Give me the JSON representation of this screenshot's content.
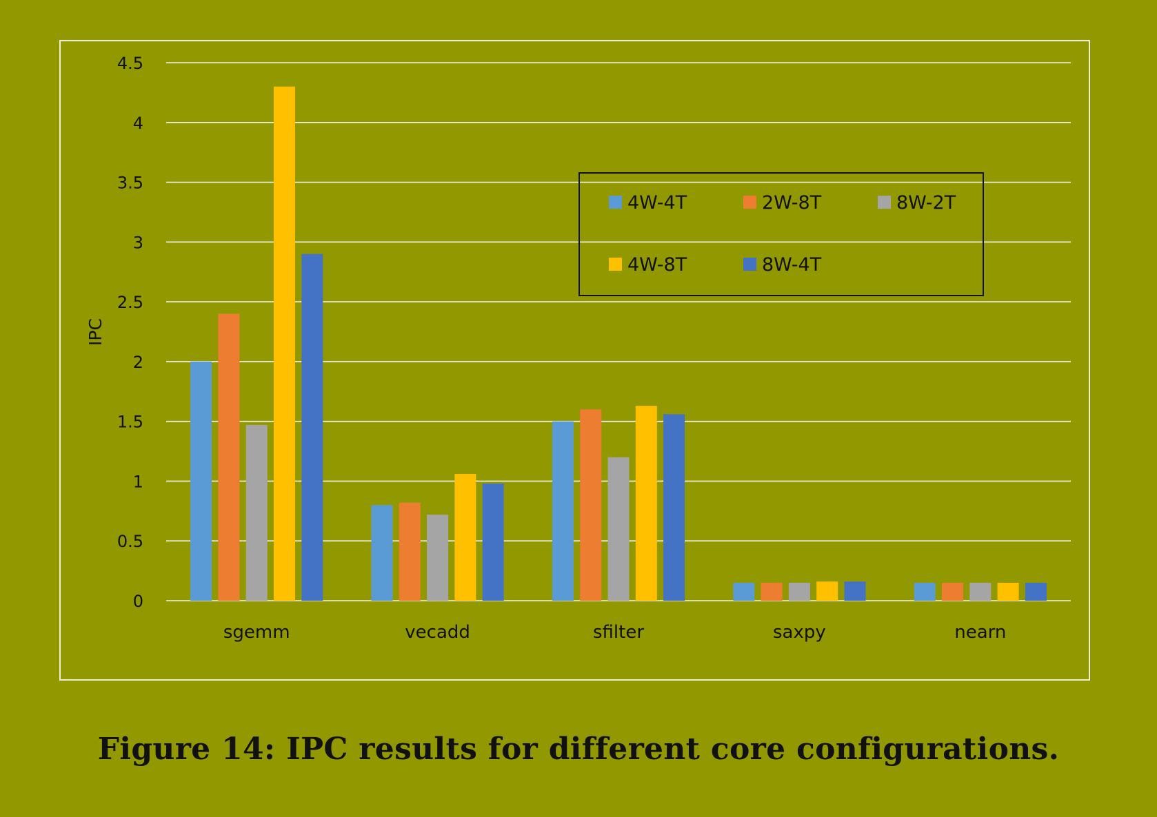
{
  "caption": "Figure 14: IPC results for different core configurations.",
  "chart_data": {
    "type": "bar",
    "title": "",
    "xlabel": "",
    "ylabel": "IPC",
    "ylim": [
      0,
      4.5
    ],
    "yticks": [
      "0",
      "0.5",
      "1",
      "1.5",
      "2",
      "2.5",
      "3",
      "3.5",
      "4",
      "4.5"
    ],
    "grid": true,
    "legend_position": "top-right",
    "categories": [
      "sgemm",
      "vecadd",
      "sfilter",
      "saxpy",
      "nearn"
    ],
    "series": [
      {
        "name": "4W-4T",
        "color": "#5b9bd5",
        "values": [
          2.0,
          0.8,
          1.5,
          0.15,
          0.15
        ]
      },
      {
        "name": "2W-8T",
        "color": "#ed7d31",
        "values": [
          2.4,
          0.82,
          1.6,
          0.15,
          0.15
        ]
      },
      {
        "name": "8W-2T",
        "color": "#a5a5a5",
        "values": [
          1.47,
          0.72,
          1.2,
          0.15,
          0.15
        ]
      },
      {
        "name": "4W-8T",
        "color": "#ffc000",
        "values": [
          4.3,
          1.06,
          1.63,
          0.16,
          0.15
        ]
      },
      {
        "name": "8W-4T",
        "color": "#4472c4",
        "values": [
          2.9,
          0.98,
          1.56,
          0.16,
          0.15
        ]
      }
    ]
  }
}
